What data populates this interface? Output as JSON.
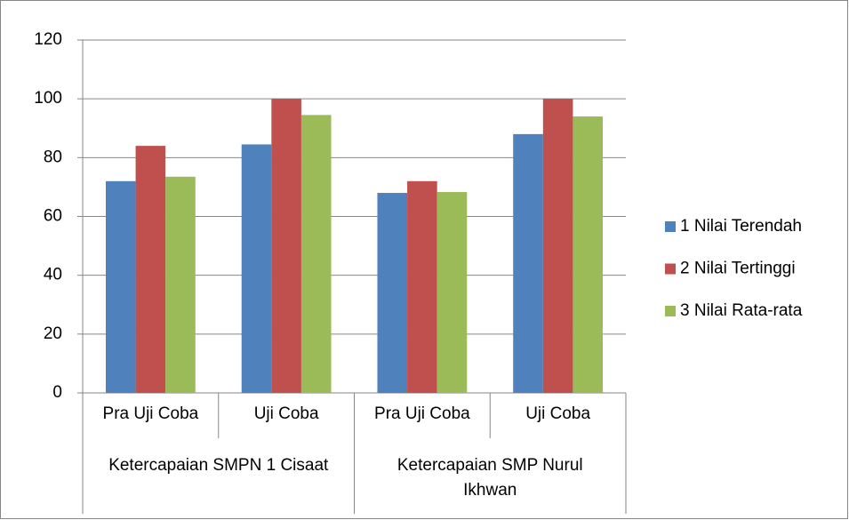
{
  "chart_data": {
    "type": "bar",
    "categories": [
      "Pra Uji Coba",
      "Uji Coba",
      "Pra Uji Coba",
      "Uji Coba"
    ],
    "groups": [
      "Ketercapaian SMPN 1 Cisaat",
      "Ketercapaian SMP Nurul Ikhwan"
    ],
    "series": [
      {
        "name": "1 Nilai Terendah",
        "color": "#4f81bd",
        "values": [
          72,
          84.5,
          68,
          88
        ]
      },
      {
        "name": "2 Nilai Tertinggi",
        "color": "#c0504d",
        "values": [
          84,
          100,
          72,
          100
        ]
      },
      {
        "name": "3 Nilai Rata-rata",
        "color": "#9bbb59",
        "values": [
          73.5,
          94.5,
          68.3,
          94
        ]
      }
    ],
    "ylim": [
      0,
      120
    ],
    "yticks": [
      0,
      20,
      40,
      60,
      80,
      100,
      120
    ],
    "grid": true,
    "legend": "right"
  }
}
